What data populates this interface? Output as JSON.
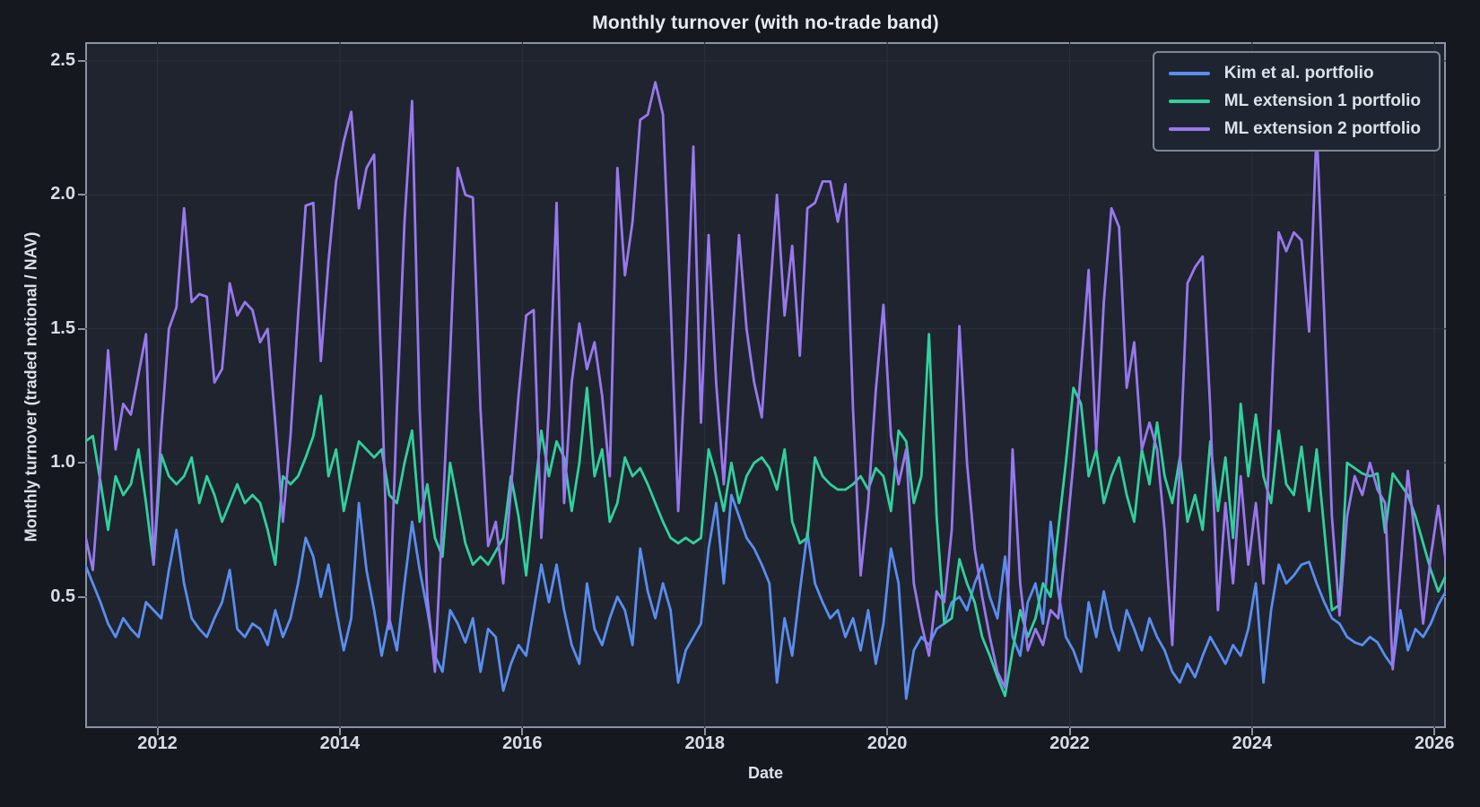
{
  "figure": {
    "title": "Monthly turnover (with no-trade band)",
    "background_color": "#15181f",
    "axes_background_color": "#1f242e",
    "grid_color": "#2a303b",
    "spine_color": "#8b93a5",
    "tick_label_color": "#d8dce4"
  },
  "chart_data": {
    "type": "line",
    "title": "Monthly turnover (with no-trade band)",
    "xlabel": "Date",
    "ylabel": "Monthly turnover (traded notional / NAV)",
    "x_start": "2011-03",
    "x_freq": "monthly",
    "xlim": [
      2011.208,
      2026.125
    ],
    "ylim": [
      0.01,
      2.57
    ],
    "x_ticks": [
      2012,
      2014,
      2016,
      2018,
      2020,
      2022,
      2024,
      2026
    ],
    "y_ticks": [
      0.5,
      1.0,
      1.5,
      2.0,
      2.5
    ],
    "grid": true,
    "legend_position": "upper right",
    "series": [
      {
        "name": "Kim et al. portfolio",
        "color": "#5a8def",
        "values": [
          0.62,
          0.55,
          0.48,
          0.4,
          0.35,
          0.42,
          0.38,
          0.35,
          0.48,
          0.45,
          0.42,
          0.6,
          0.75,
          0.55,
          0.42,
          0.38,
          0.35,
          0.42,
          0.48,
          0.6,
          0.38,
          0.35,
          0.4,
          0.38,
          0.32,
          0.45,
          0.35,
          0.42,
          0.55,
          0.72,
          0.65,
          0.5,
          0.62,
          0.45,
          0.3,
          0.42,
          0.85,
          0.6,
          0.45,
          0.28,
          0.42,
          0.3,
          0.55,
          0.78,
          0.6,
          0.45,
          0.28,
          0.22,
          0.45,
          0.4,
          0.33,
          0.42,
          0.22,
          0.38,
          0.35,
          0.15,
          0.25,
          0.32,
          0.28,
          0.45,
          0.62,
          0.48,
          0.62,
          0.45,
          0.32,
          0.25,
          0.55,
          0.38,
          0.32,
          0.42,
          0.5,
          0.45,
          0.32,
          0.68,
          0.52,
          0.42,
          0.55,
          0.45,
          0.18,
          0.3,
          0.35,
          0.4,
          0.68,
          0.85,
          0.55,
          0.88,
          0.8,
          0.72,
          0.68,
          0.62,
          0.55,
          0.18,
          0.42,
          0.28,
          0.52,
          0.74,
          0.55,
          0.48,
          0.42,
          0.45,
          0.35,
          0.42,
          0.3,
          0.45,
          0.25,
          0.4,
          0.68,
          0.55,
          0.12,
          0.3,
          0.35,
          0.32,
          0.38,
          0.4,
          0.48,
          0.5,
          0.45,
          0.55,
          0.62,
          0.5,
          0.42,
          0.65,
          0.35,
          0.28,
          0.48,
          0.55,
          0.4,
          0.78,
          0.52,
          0.35,
          0.3,
          0.22,
          0.48,
          0.35,
          0.52,
          0.38,
          0.3,
          0.45,
          0.38,
          0.3,
          0.42,
          0.35,
          0.3,
          0.22,
          0.18,
          0.25,
          0.2,
          0.28,
          0.35,
          0.3,
          0.25,
          0.32,
          0.28,
          0.38,
          0.55,
          0.18,
          0.45,
          0.62,
          0.55,
          0.58,
          0.62,
          0.63,
          0.55,
          0.48,
          0.42,
          0.4,
          0.35,
          0.33,
          0.32,
          0.35,
          0.33,
          0.28,
          0.24,
          0.45,
          0.3,
          0.38,
          0.35,
          0.4,
          0.47,
          0.52
        ]
      },
      {
        "name": "ML extension 1 portfolio",
        "color": "#31d09e",
        "values": [
          1.08,
          1.1,
          0.93,
          0.75,
          0.95,
          0.88,
          0.92,
          1.05,
          0.85,
          0.62,
          1.03,
          0.95,
          0.92,
          0.95,
          1.02,
          0.85,
          0.95,
          0.88,
          0.78,
          0.85,
          0.92,
          0.85,
          0.88,
          0.85,
          0.75,
          0.62,
          0.95,
          0.92,
          0.95,
          1.02,
          1.1,
          1.25,
          0.95,
          1.05,
          0.82,
          0.95,
          1.08,
          1.05,
          1.02,
          1.05,
          0.88,
          0.85,
          1.0,
          1.12,
          0.78,
          0.92,
          0.72,
          0.65,
          1.0,
          0.85,
          0.7,
          0.62,
          0.65,
          0.62,
          0.67,
          0.72,
          0.95,
          0.8,
          0.58,
          0.85,
          1.12,
          0.95,
          1.08,
          1.02,
          0.82,
          1.0,
          1.28,
          0.95,
          1.05,
          0.78,
          0.85,
          1.02,
          0.95,
          0.98,
          0.92,
          0.85,
          0.78,
          0.72,
          0.7,
          0.72,
          0.7,
          0.72,
          1.05,
          0.95,
          0.82,
          1.0,
          0.85,
          0.95,
          1.0,
          1.02,
          0.98,
          0.9,
          1.05,
          0.78,
          0.7,
          0.72,
          1.02,
          0.95,
          0.92,
          0.9,
          0.9,
          0.92,
          0.95,
          0.9,
          0.98,
          0.95,
          0.82,
          1.12,
          1.08,
          0.85,
          0.95,
          1.48,
          0.8,
          0.4,
          0.42,
          0.64,
          0.55,
          0.48,
          0.35,
          0.28,
          0.2,
          0.13,
          0.3,
          0.45,
          0.35,
          0.42,
          0.55,
          0.5,
          0.75,
          1.0,
          1.28,
          1.22,
          0.95,
          1.05,
          0.85,
          0.95,
          1.02,
          0.88,
          0.78,
          1.05,
          0.92,
          1.15,
          0.95,
          0.85,
          1.02,
          0.78,
          0.88,
          0.75,
          1.08,
          0.82,
          1.02,
          0.72,
          1.22,
          0.95,
          1.18,
          0.95,
          0.85,
          1.12,
          0.92,
          0.88,
          1.06,
          0.82,
          1.05,
          0.75,
          0.45,
          0.47,
          1.0,
          0.98,
          0.96,
          0.95,
          0.96,
          0.74,
          0.96,
          0.92,
          0.88,
          0.8,
          0.7,
          0.6,
          0.52,
          0.58
        ]
      },
      {
        "name": "ML extension 2 portfolio",
        "color": "#9878ee",
        "values": [
          0.73,
          0.6,
          0.98,
          1.42,
          1.05,
          1.22,
          1.18,
          1.33,
          1.48,
          0.62,
          1.12,
          1.5,
          1.58,
          1.95,
          1.6,
          1.63,
          1.62,
          1.3,
          1.35,
          1.67,
          1.55,
          1.6,
          1.57,
          1.45,
          1.5,
          1.15,
          0.78,
          1.1,
          1.55,
          1.96,
          1.97,
          1.38,
          1.75,
          2.05,
          2.2,
          2.31,
          1.95,
          2.1,
          2.15,
          1.3,
          0.38,
          1.2,
          1.9,
          2.35,
          1.2,
          0.5,
          0.22,
          0.8,
          1.4,
          2.1,
          2.0,
          1.99,
          1.2,
          0.69,
          0.78,
          0.55,
          0.9,
          1.25,
          1.55,
          1.57,
          0.72,
          1.2,
          1.97,
          0.85,
          1.3,
          1.52,
          1.35,
          1.45,
          1.25,
          0.95,
          2.1,
          1.7,
          1.9,
          2.28,
          2.3,
          2.42,
          2.3,
          1.6,
          0.82,
          1.4,
          2.18,
          1.15,
          1.85,
          1.3,
          0.92,
          1.4,
          1.85,
          1.5,
          1.3,
          1.17,
          1.6,
          2.0,
          1.55,
          1.81,
          1.4,
          1.95,
          1.97,
          2.05,
          2.05,
          1.9,
          2.04,
          1.2,
          0.58,
          0.85,
          1.27,
          1.59,
          1.1,
          0.92,
          1.05,
          0.55,
          0.4,
          0.28,
          0.52,
          0.48,
          0.75,
          1.51,
          1.0,
          0.68,
          0.5,
          0.35,
          0.22,
          0.16,
          1.05,
          0.55,
          0.3,
          0.38,
          0.32,
          0.45,
          0.42,
          0.7,
          1.0,
          1.35,
          1.72,
          1.05,
          1.6,
          1.95,
          1.88,
          1.28,
          1.45,
          1.05,
          1.15,
          1.05,
          0.75,
          0.32,
          1.0,
          1.67,
          1.73,
          1.77,
          1.2,
          0.45,
          0.85,
          0.55,
          0.95,
          0.62,
          0.85,
          0.55,
          1.2,
          1.86,
          1.79,
          1.86,
          1.83,
          1.49,
          2.25,
          1.55,
          0.8,
          0.43,
          0.8,
          0.95,
          0.88,
          1.0,
          0.9,
          0.85,
          0.23,
          0.6,
          0.97,
          0.7,
          0.4,
          0.65,
          0.84,
          0.63
        ]
      }
    ]
  },
  "legend": {
    "entries": [
      {
        "label": "Kim et al. portfolio",
        "color": "#5a8def"
      },
      {
        "label": "ML extension 1 portfolio",
        "color": "#31d09e"
      },
      {
        "label": "ML extension 2 portfolio",
        "color": "#9878ee"
      }
    ]
  }
}
